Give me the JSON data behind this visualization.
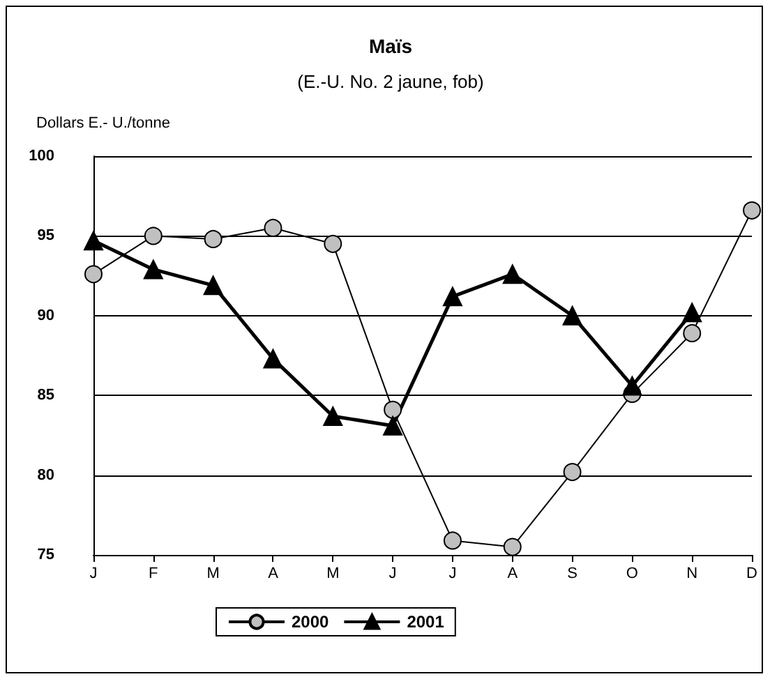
{
  "chart_data": {
    "type": "line",
    "title": "Maïs",
    "subtitle": "(E.-U. No. 2 jaune, fob)",
    "ylabel": "Dollars E.- U./tonne",
    "categories": [
      "J",
      "F",
      "M",
      "A",
      "M",
      "J",
      "J",
      "A",
      "S",
      "O",
      "N",
      "D"
    ],
    "series": [
      {
        "name": "2000",
        "color": "#c0c0c0",
        "marker": "circle",
        "values": [
          92.6,
          95.0,
          94.8,
          95.5,
          94.5,
          84.1,
          75.9,
          75.5,
          80.2,
          85.1,
          88.9,
          96.6
        ]
      },
      {
        "name": "2001",
        "color": "#000000",
        "marker": "triangle",
        "values": [
          94.7,
          92.9,
          91.9,
          87.3,
          83.7,
          83.1,
          91.2,
          92.6,
          90.0,
          85.6,
          90.2,
          null
        ]
      }
    ],
    "ylim": [
      75,
      100
    ],
    "yticks": [
      75,
      80,
      85,
      90,
      95,
      100
    ],
    "grid": "y",
    "legend": "bottom"
  }
}
